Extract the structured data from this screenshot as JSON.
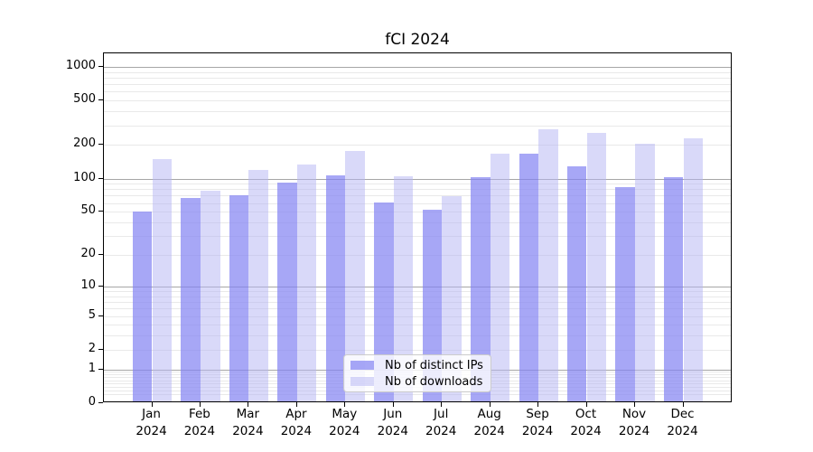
{
  "chart_data": {
    "type": "bar",
    "title": "fCI 2024",
    "categories": [
      "Jan",
      "Feb",
      "Mar",
      "Apr",
      "May",
      "Jun",
      "Jul",
      "Aug",
      "Sep",
      "Oct",
      "Nov",
      "Dec"
    ],
    "category_year": "2024",
    "series": [
      {
        "name": "Nb of distinct IPs",
        "color": "rgba(130,130,242,0.70)",
        "values": [
          48,
          64,
          68,
          89,
          102,
          59,
          50,
          99,
          160,
          125,
          81,
          100
        ]
      },
      {
        "name": "Nb of downloads",
        "color": "rgba(183,183,244,0.52)",
        "values": [
          143,
          75,
          115,
          128,
          172,
          101,
          67,
          160,
          268,
          248,
          199,
          222
        ]
      }
    ],
    "y_axis": {
      "scale": "log1p",
      "ticks": [
        0,
        1,
        2,
        5,
        10,
        20,
        50,
        100,
        200,
        500,
        1000
      ],
      "max_limit": 1320,
      "major_grid_values": [
        1,
        10,
        100,
        1000
      ]
    },
    "grid": {
      "major_color": "#a6a6a6",
      "minor_color": "#e9e9e9"
    },
    "legend": {
      "position": "lower-center-inside"
    }
  }
}
